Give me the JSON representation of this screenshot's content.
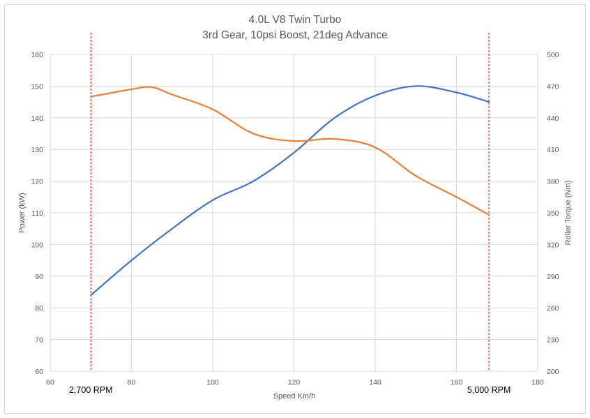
{
  "chart_data": {
    "type": "line",
    "title": [
      "4.0L V8 Twin Turbo",
      "3rd Gear, 10psi Boost, 21deg Advance"
    ],
    "xlabel": "Speed Km/h",
    "ylabel": "Power (kW)",
    "y2label": "Roller Torque (Nm)",
    "xlim": [
      60,
      180
    ],
    "ylim": [
      60,
      160
    ],
    "y2lim": [
      200,
      500
    ],
    "x_ticks": [
      60,
      80,
      100,
      120,
      140,
      160,
      180
    ],
    "y_ticks": [
      60,
      70,
      80,
      90,
      100,
      110,
      120,
      130,
      140,
      150,
      160
    ],
    "y2_ticks": [
      200,
      230,
      260,
      290,
      320,
      350,
      380,
      410,
      440,
      470,
      500
    ],
    "grid": true,
    "series": [
      {
        "name": "Power",
        "axis": "left",
        "color": "#4472c4",
        "x": [
          70,
          80,
          90,
          100,
          110,
          120,
          130,
          140,
          150,
          160,
          168
        ],
        "y": [
          84,
          95,
          105,
          114,
          120,
          129,
          140,
          147,
          150,
          148,
          145
        ]
      },
      {
        "name": "Roller Torque",
        "axis": "right",
        "color": "#ed7d31",
        "x": [
          70,
          80,
          85,
          90,
          100,
          110,
          120,
          130,
          140,
          150,
          160,
          168
        ],
        "y": [
          460,
          467,
          469,
          462,
          448,
          425,
          418,
          420,
          412,
          385,
          365,
          348
        ]
      }
    ],
    "markers": [
      {
        "label": "2,700 RPM",
        "x": 70,
        "color": "#ff0000"
      },
      {
        "label": "5,000 RPM",
        "x": 168,
        "color": "#ff0000"
      }
    ]
  }
}
